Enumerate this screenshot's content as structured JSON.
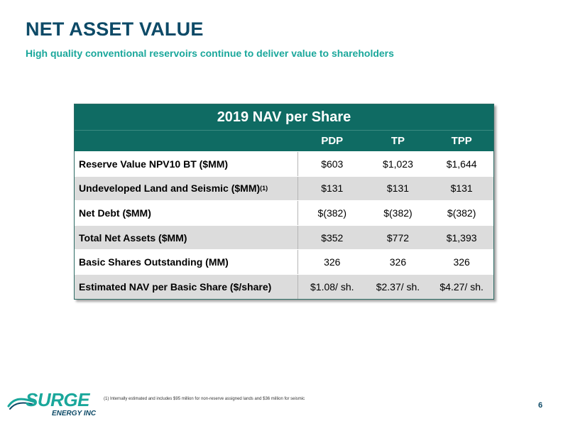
{
  "slide": {
    "title": "NET ASSET VALUE",
    "subtitle": "High quality conventional reservoirs continue to deliver value to shareholders",
    "page_number": "6",
    "footnote": "(1) Internally estimated and includes $95 million for non-reserve assigned lands and $36 million for seismic"
  },
  "logo": {
    "word": "SURGE",
    "sub": "ENERGY INC"
  },
  "table": {
    "title": "2019 NAV per Share",
    "columns": [
      "PDP",
      "TP",
      "TPP"
    ],
    "rows": [
      {
        "label": "Reserve Value NPV10 BT ($MM)",
        "sup": "",
        "values": [
          "$603",
          "$1,023",
          "$1,644"
        ]
      },
      {
        "label": "Undeveloped Land and Seismic ($MM)",
        "sup": "(1)",
        "values": [
          "$131",
          "$131",
          "$131"
        ]
      },
      {
        "label": "Net Debt ($MM)",
        "sup": "",
        "values": [
          "$(382)",
          "$(382)",
          "$(382)"
        ]
      },
      {
        "label": "Total Net Assets ($MM)",
        "sup": "",
        "values": [
          "$352",
          "$772",
          "$1,393"
        ]
      },
      {
        "label": "Basic Shares Outstanding (MM)",
        "sup": "",
        "values": [
          "326",
          "326",
          "326"
        ]
      },
      {
        "label": "Estimated NAV per Basic Share ($/share)",
        "sup": "",
        "values": [
          "$1.08/ sh.",
          "$2.37/ sh.",
          "$4.27/ sh."
        ]
      }
    ]
  },
  "colors": {
    "title": "#0d4a67",
    "subtitle": "#1aa79b",
    "table_header": "#0f6b63",
    "row_shaded": "#dcdcdc"
  }
}
